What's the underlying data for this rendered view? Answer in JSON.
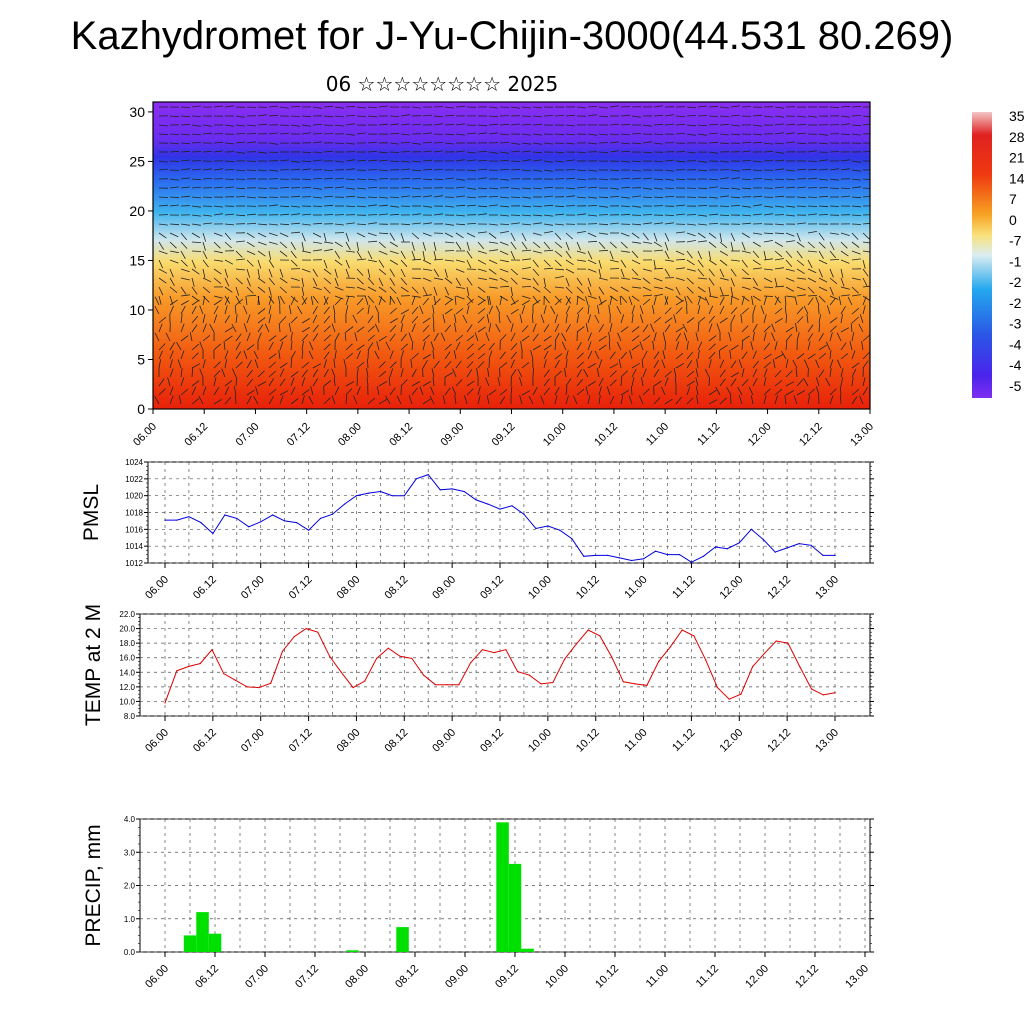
{
  "header": {
    "title": "Kazhydromet for J-Yu-Chijin-3000(44.531 80.269)",
    "subtitle": "06 ☆☆☆☆☆☆☆☆ 2025"
  },
  "chart_data": [
    {
      "type": "heatmap",
      "name": "vertical-profile",
      "x_tick_labels": [
        "06.00",
        "06.12",
        "07.00",
        "07.12",
        "08.00",
        "08.12",
        "09.00",
        "09.12",
        "10.00",
        "10.12",
        "11.00",
        "11.12",
        "12.00",
        "12.12",
        "13.00"
      ],
      "y_tick_labels": [
        "0",
        "5",
        "10",
        "15",
        "20",
        "25",
        "30"
      ],
      "ylim": [
        0,
        31
      ],
      "colorbar_labels": [
        "35",
        "28",
        "21",
        "14",
        "7",
        "0",
        "-7",
        "-1",
        "-2",
        "-2",
        "-3",
        "-4",
        "-4",
        "-5"
      ],
      "colors": {
        "warm_low": "#e8200a",
        "mid": "#f5c84a",
        "cold_high": "#7a1cf0"
      }
    },
    {
      "type": "line",
      "ylabel": "PMSL",
      "ylim": [
        1012,
        1024
      ],
      "y_tick_labels": [
        "1024",
        "1022",
        "1020",
        "1018",
        "1016",
        "1014",
        "1012"
      ],
      "x_tick_labels": [
        "06.00",
        "06.12",
        "07.00",
        "07.12",
        "08.00",
        "08.12",
        "09.00",
        "09.12",
        "10.00",
        "10.12",
        "11.00",
        "11.12",
        "12.00",
        "12.12",
        "13.00"
      ],
      "color": "#0000dd",
      "values": [
        1017.1,
        1017.1,
        1017.5,
        1016.8,
        1015.5,
        1017.7,
        1017.3,
        1016.3,
        1016.9,
        1017.7,
        1017.0,
        1016.8,
        1015.9,
        1017.3,
        1017.8,
        1019.0,
        1020.0,
        1020.3,
        1020.5,
        1020.0,
        1020.0,
        1022.0,
        1022.5,
        1020.7,
        1020.8,
        1020.5,
        1019.5,
        1019.0,
        1018.4,
        1018.8,
        1017.8,
        1016.1,
        1016.4,
        1015.9,
        1014.9,
        1012.8,
        1012.9,
        1012.9,
        1012.6,
        1012.3,
        1012.5,
        1013.4,
        1013.0,
        1013.0,
        1012.1,
        1012.8,
        1013.9,
        1013.7,
        1014.4,
        1016.0,
        1014.8,
        1013.3,
        1013.8,
        1014.3,
        1014.1,
        1012.9,
        1012.9
      ]
    },
    {
      "type": "line",
      "ylabel": "TEMP at 2 M",
      "ylim": [
        8,
        22
      ],
      "y_tick_labels": [
        "22.0",
        "20.0",
        "18.0",
        "16.0",
        "14.0",
        "12.0",
        "10.0",
        "8.0"
      ],
      "x_tick_labels": [
        "06.00",
        "06.12",
        "07.00",
        "07.12",
        "08.00",
        "08.12",
        "09.00",
        "09.12",
        "10.00",
        "10.12",
        "11.00",
        "11.12",
        "12.00",
        "12.12",
        "13.00"
      ],
      "color": "#dd0000",
      "values": [
        9.8,
        14.2,
        14.8,
        15.2,
        17.1,
        13.8,
        12.9,
        12.0,
        11.9,
        12.5,
        16.9,
        18.9,
        20.0,
        19.5,
        16.2,
        14.0,
        11.9,
        12.8,
        15.9,
        17.3,
        16.2,
        15.9,
        13.6,
        12.3,
        12.3,
        12.3,
        15.3,
        17.1,
        16.7,
        17.1,
        14.1,
        13.6,
        12.4,
        12.6,
        15.8,
        17.9,
        19.8,
        19.0,
        16.1,
        12.7,
        12.4,
        12.2,
        15.5,
        17.5,
        19.8,
        19.0,
        15.7,
        11.9,
        10.3,
        11.0,
        14.8,
        16.6,
        18.3,
        18.0,
        14.8,
        11.7,
        10.9,
        11.2
      ]
    },
    {
      "type": "bar",
      "ylabel": "PRECIP, mm",
      "ylim": [
        0,
        4
      ],
      "y_tick_labels": [
        "4.0",
        "3.0",
        "2.0",
        "1.0",
        "0.0"
      ],
      "x_tick_labels": [
        "06.00",
        "06.12",
        "07.00",
        "07.12",
        "08.00",
        "08.12",
        "09.00",
        "09.12",
        "10.00",
        "10.12",
        "11.00",
        "11.12",
        "12.00",
        "12.12",
        "13.00"
      ],
      "color": "#00e000",
      "values": [
        0,
        0,
        0.5,
        1.2,
        0.55,
        0,
        0,
        0,
        0,
        0,
        0,
        0,
        0,
        0,
        0,
        0.05,
        0,
        0,
        0,
        0.75,
        0,
        0,
        0,
        0,
        0,
        0,
        0,
        3.9,
        2.65,
        0.1,
        0,
        0,
        0,
        0,
        0,
        0,
        0,
        0,
        0,
        0,
        0,
        0,
        0,
        0,
        0,
        0,
        0,
        0,
        0,
        0,
        0,
        0,
        0,
        0,
        0,
        0,
        0
      ]
    }
  ]
}
